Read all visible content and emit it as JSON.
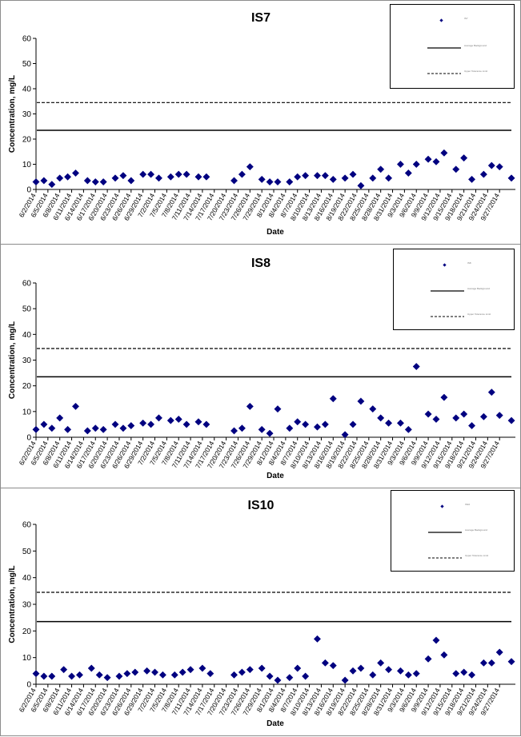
{
  "charts": [
    {
      "legend": {
        "series_label": "IS7",
        "solid_label": "Average Background",
        "dashed_label": "Upper Tolerance Limit"
      },
      "chart_data": {
        "type": "scatter",
        "title": "IS7",
        "xlabel": "Date",
        "ylabel": "Concentration, mg/L",
        "ylim": [
          0,
          60
        ],
        "yticks": [
          0,
          10,
          20,
          30,
          40,
          50,
          60
        ],
        "xticks": [
          "6/2/2014",
          "6/5/2014",
          "6/8/2014",
          "6/11/2014",
          "6/14/2014",
          "6/17/2014",
          "6/20/2014",
          "6/23/2014",
          "6/26/2014",
          "6/29/2014",
          "7/2/2014",
          "7/5/2014",
          "7/8/2014",
          "7/11/2014",
          "7/14/2014",
          "7/17/2014",
          "7/20/2014",
          "7/23/2014",
          "7/26/2014",
          "7/29/2014",
          "8/1/2014",
          "8/4/2014",
          "8/7/2014",
          "8/10/2014",
          "8/13/2014",
          "8/16/2014",
          "8/19/2014",
          "8/22/2014",
          "8/25/2014",
          "8/28/2014",
          "8/31/2014",
          "9/3/2014",
          "9/6/2014",
          "9/9/2014",
          "9/12/2014",
          "9/15/2014",
          "9/18/2014",
          "9/21/2014",
          "9/24/2014",
          "9/27/2014"
        ],
        "grid": false,
        "legend_position": "top-right",
        "series": [
          {
            "name": "IS7",
            "marker": "diamond",
            "color": "#000080",
            "points": [
              [
                "6/2/2014",
                3
              ],
              [
                "6/4/2014",
                3.5
              ],
              [
                "6/6/2014",
                2
              ],
              [
                "6/8/2014",
                4.5
              ],
              [
                "6/10/2014",
                5
              ],
              [
                "6/12/2014",
                6.5
              ],
              [
                "6/15/2014",
                3.5
              ],
              [
                "6/17/2014",
                3
              ],
              [
                "6/19/2014",
                3
              ],
              [
                "6/22/2014",
                4.5
              ],
              [
                "6/24/2014",
                5.5
              ],
              [
                "6/26/2014",
                3.5
              ],
              [
                "6/29/2014",
                6
              ],
              [
                "7/1/2014",
                6
              ],
              [
                "7/3/2014",
                4.5
              ],
              [
                "7/6/2014",
                5
              ],
              [
                "7/8/2014",
                6
              ],
              [
                "7/10/2014",
                6
              ],
              [
                "7/13/2014",
                5
              ],
              [
                "7/15/2014",
                5
              ],
              [
                "7/22/2014",
                3.5
              ],
              [
                "7/24/2014",
                6
              ],
              [
                "7/26/2014",
                9
              ],
              [
                "7/29/2014",
                4
              ],
              [
                "7/31/2014",
                3
              ],
              [
                "8/2/2014",
                3
              ],
              [
                "8/5/2014",
                3
              ],
              [
                "8/7/2014",
                5
              ],
              [
                "8/9/2014",
                5.5
              ],
              [
                "8/12/2014",
                5.5
              ],
              [
                "8/14/2014",
                5.5
              ],
              [
                "8/16/2014",
                4
              ],
              [
                "8/19/2014",
                4.5
              ],
              [
                "8/21/2014",
                6
              ],
              [
                "8/23/2014",
                1.5
              ],
              [
                "8/26/2014",
                4.5
              ],
              [
                "8/28/2014",
                8
              ],
              [
                "8/30/2014",
                4.5
              ],
              [
                "9/2/2014",
                10
              ],
              [
                "9/4/2014",
                6.5
              ],
              [
                "9/6/2014",
                10
              ],
              [
                "9/9/2014",
                12
              ],
              [
                "9/11/2014",
                11
              ],
              [
                "9/13/2014",
                14.5
              ],
              [
                "9/16/2014",
                8
              ],
              [
                "9/18/2014",
                12.5
              ],
              [
                "9/20/2014",
                4
              ],
              [
                "9/23/2014",
                6
              ],
              [
                "9/25/2014",
                9.5
              ],
              [
                "9/27/2014",
                9
              ],
              [
                "9/30/2014",
                4.5
              ]
            ]
          }
        ],
        "reference_lines": [
          {
            "name": "Average Background",
            "style": "solid",
            "value": 23.5
          },
          {
            "name": "Upper Tolerance Limit",
            "style": "dashed",
            "value": 34.5
          }
        ]
      }
    },
    {
      "legend": {
        "series_label": "IS8",
        "solid_label": "Average Background",
        "dashed_label": "Upper Tolerance Limit"
      },
      "chart_data": {
        "type": "scatter",
        "title": "IS8",
        "xlabel": "Date",
        "ylabel": "Concentration, mg/L",
        "ylim": [
          0,
          60
        ],
        "yticks": [
          0,
          10,
          20,
          30,
          40,
          50,
          60
        ],
        "xticks": [
          "6/2/2014",
          "6/5/2014",
          "6/8/2014",
          "6/11/2014",
          "6/14/2014",
          "6/17/2014",
          "6/20/2014",
          "6/23/2014",
          "6/26/2014",
          "6/29/2014",
          "7/2/2014",
          "7/5/2014",
          "7/8/2014",
          "7/11/2014",
          "7/14/2014",
          "7/17/2014",
          "7/20/2014",
          "7/23/2014",
          "7/26/2014",
          "7/29/2014",
          "8/1/2014",
          "8/4/2014",
          "8/7/2014",
          "8/10/2014",
          "8/13/2014",
          "8/16/2014",
          "8/19/2014",
          "8/22/2014",
          "8/25/2014",
          "8/28/2014",
          "8/31/2014",
          "9/3/2014",
          "9/6/2014",
          "9/9/2014",
          "9/12/2014",
          "9/15/2014",
          "9/18/2014",
          "9/21/2014",
          "9/24/2014",
          "9/27/2014"
        ],
        "grid": false,
        "legend_position": "top-right",
        "series": [
          {
            "name": "IS8",
            "marker": "diamond",
            "color": "#000080",
            "points": [
              [
                "6/2/2014",
                3
              ],
              [
                "6/4/2014",
                5
              ],
              [
                "6/6/2014",
                3.5
              ],
              [
                "6/8/2014",
                7.5
              ],
              [
                "6/10/2014",
                3
              ],
              [
                "6/12/2014",
                12
              ],
              [
                "6/15/2014",
                2.5
              ],
              [
                "6/17/2014",
                3.5
              ],
              [
                "6/19/2014",
                3
              ],
              [
                "6/22/2014",
                5
              ],
              [
                "6/24/2014",
                3.5
              ],
              [
                "6/26/2014",
                4.5
              ],
              [
                "6/29/2014",
                5.5
              ],
              [
                "7/1/2014",
                5
              ],
              [
                "7/3/2014",
                7.5
              ],
              [
                "7/6/2014",
                6.5
              ],
              [
                "7/8/2014",
                7
              ],
              [
                "7/10/2014",
                5
              ],
              [
                "7/13/2014",
                6
              ],
              [
                "7/15/2014",
                5
              ],
              [
                "7/22/2014",
                2.5
              ],
              [
                "7/24/2014",
                3.5
              ],
              [
                "7/26/2014",
                12
              ],
              [
                "7/29/2014",
                3
              ],
              [
                "7/31/2014",
                1.5
              ],
              [
                "8/2/2014",
                11
              ],
              [
                "8/5/2014",
                3.5
              ],
              [
                "8/7/2014",
                6
              ],
              [
                "8/9/2014",
                5
              ],
              [
                "8/12/2014",
                4
              ],
              [
                "8/14/2014",
                5
              ],
              [
                "8/16/2014",
                15
              ],
              [
                "8/19/2014",
                1
              ],
              [
                "8/21/2014",
                5
              ],
              [
                "8/23/2014",
                14
              ],
              [
                "8/26/2014",
                11
              ],
              [
                "8/28/2014",
                7.5
              ],
              [
                "8/30/2014",
                5.5
              ],
              [
                "9/2/2014",
                5.5
              ],
              [
                "9/4/2014",
                3
              ],
              [
                "9/6/2014",
                27.5
              ],
              [
                "9/9/2014",
                9
              ],
              [
                "9/11/2014",
                7
              ],
              [
                "9/13/2014",
                15.5
              ],
              [
                "9/16/2014",
                7.5
              ],
              [
                "9/18/2014",
                9
              ],
              [
                "9/20/2014",
                4.5
              ],
              [
                "9/23/2014",
                8
              ],
              [
                "9/25/2014",
                17.5
              ],
              [
                "9/27/2014",
                8.5
              ],
              [
                "9/30/2014",
                6.5
              ]
            ]
          }
        ],
        "reference_lines": [
          {
            "name": "Average Background",
            "style": "solid",
            "value": 23.5
          },
          {
            "name": "Upper Tolerance Limit",
            "style": "dashed",
            "value": 34.5
          }
        ]
      }
    },
    {
      "legend": {
        "series_label": "IS10",
        "solid_label": "Average Background",
        "dashed_label": "Upper Tolerance Limit"
      },
      "chart_data": {
        "type": "scatter",
        "title": "IS10",
        "xlabel": "Date",
        "ylabel": "Concentration, mg/L",
        "ylim": [
          0,
          60
        ],
        "yticks": [
          0,
          10,
          20,
          30,
          40,
          50,
          60
        ],
        "xticks": [
          "6/2/2014",
          "6/5/2014",
          "6/8/2014",
          "6/11/2014",
          "6/14/2014",
          "6/17/2014",
          "6/20/2014",
          "6/23/2014",
          "6/26/2014",
          "6/29/2014",
          "7/2/2014",
          "7/5/2014",
          "7/8/2014",
          "7/11/2014",
          "7/14/2014",
          "7/17/2014",
          "7/20/2014",
          "7/23/2014",
          "7/26/2014",
          "7/29/2014",
          "8/1/2014",
          "8/4/2014",
          "8/7/2014",
          "8/10/2014",
          "8/13/2014",
          "8/16/2014",
          "8/19/2014",
          "8/22/2014",
          "8/25/2014",
          "8/28/2014",
          "8/31/2014",
          "9/3/2014",
          "9/6/2014",
          "9/9/2014",
          "9/12/2014",
          "9/15/2014",
          "9/18/2014",
          "9/21/2014",
          "9/24/2014",
          "9/27/2014"
        ],
        "grid": false,
        "legend_position": "top-right",
        "series": [
          {
            "name": "IS10",
            "marker": "diamond",
            "color": "#000080",
            "points": [
              [
                "6/2/2014",
                4
              ],
              [
                "6/4/2014",
                3
              ],
              [
                "6/6/2014",
                3
              ],
              [
                "6/9/2014",
                5.5
              ],
              [
                "6/11/2014",
                3
              ],
              [
                "6/13/2014",
                3.5
              ],
              [
                "6/16/2014",
                6
              ],
              [
                "6/18/2014",
                3.5
              ],
              [
                "6/20/2014",
                2.5
              ],
              [
                "6/23/2014",
                3
              ],
              [
                "6/25/2014",
                4
              ],
              [
                "6/27/2014",
                4.5
              ],
              [
                "6/30/2014",
                5
              ],
              [
                "7/2/2014",
                4.5
              ],
              [
                "7/4/2014",
                3.5
              ],
              [
                "7/7/2014",
                3.5
              ],
              [
                "7/9/2014",
                4.5
              ],
              [
                "7/11/2014",
                5.5
              ],
              [
                "7/14/2014",
                6
              ],
              [
                "7/16/2014",
                4
              ],
              [
                "7/22/2014",
                3.5
              ],
              [
                "7/24/2014",
                4.5
              ],
              [
                "7/26/2014",
                5.5
              ],
              [
                "7/29/2014",
                6
              ],
              [
                "7/31/2014",
                3
              ],
              [
                "8/2/2014",
                1.5
              ],
              [
                "8/5/2014",
                2.5
              ],
              [
                "8/7/2014",
                6
              ],
              [
                "8/9/2014",
                3
              ],
              [
                "8/12/2014",
                17
              ],
              [
                "8/14/2014",
                8
              ],
              [
                "8/16/2014",
                7
              ],
              [
                "8/19/2014",
                1.5
              ],
              [
                "8/21/2014",
                5
              ],
              [
                "8/23/2014",
                6
              ],
              [
                "8/26/2014",
                3.5
              ],
              [
                "8/28/2014",
                8
              ],
              [
                "8/30/2014",
                5.5
              ],
              [
                "9/2/2014",
                5
              ],
              [
                "9/4/2014",
                3.5
              ],
              [
                "9/6/2014",
                4
              ],
              [
                "9/9/2014",
                9.5
              ],
              [
                "9/11/2014",
                16.5
              ],
              [
                "9/13/2014",
                11
              ],
              [
                "9/16/2014",
                4
              ],
              [
                "9/18/2014",
                4.5
              ],
              [
                "9/20/2014",
                3.5
              ],
              [
                "9/23/2014",
                8
              ],
              [
                "9/25/2014",
                8
              ],
              [
                "9/27/2014",
                12
              ],
              [
                "9/30/2014",
                8.5
              ]
            ]
          }
        ],
        "reference_lines": [
          {
            "name": "Average Background",
            "style": "solid",
            "value": 23.5
          },
          {
            "name": "Upper Tolerance Limit",
            "style": "dashed",
            "value": 34.5
          }
        ]
      }
    }
  ]
}
